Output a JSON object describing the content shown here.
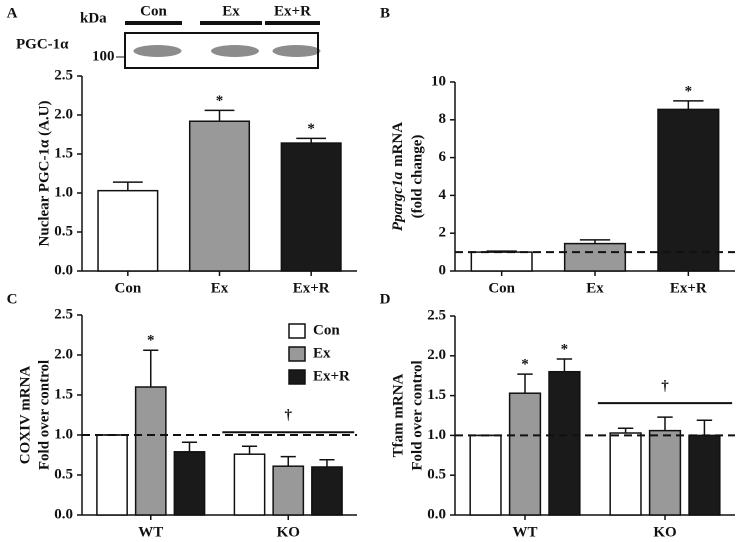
{
  "chart_data": [
    {
      "type": "bar",
      "panel": "A",
      "blot": {
        "kda": "kDa",
        "lanes": [
          "Con",
          "Ex",
          "Ex+R"
        ],
        "protein": "PGC-1α",
        "marker": "100"
      },
      "ylabel": [
        "Nuclear PGC-1α (A.U)"
      ],
      "categories": [
        "Con",
        "Ex",
        "Ex+R"
      ],
      "values": [
        1.03,
        1.92,
        1.64
      ],
      "errors": [
        0.11,
        0.14,
        0.06
      ],
      "colors": [
        "#ffffff",
        "#999999",
        "#1a1a1a"
      ],
      "ylim": [
        0,
        2.5
      ],
      "yticks": [
        {
          "value": 0,
          "label": "0.0"
        },
        {
          "value": 0.5,
          "label": "0.5"
        },
        {
          "value": 1,
          "label": "1.0"
        },
        {
          "value": 1.5,
          "label": "1.5"
        },
        {
          "value": 2,
          "label": "2.0"
        },
        {
          "value": 2.5,
          "label": "2.5"
        }
      ],
      "annotations": [
        {
          "text": "*",
          "category": 1
        },
        {
          "text": "*",
          "category": 2
        }
      ]
    },
    {
      "type": "bar",
      "panel": "B",
      "ylabel": [
        [
          "Ppargc1a",
          "mRNA"
        ],
        "(fold change)"
      ],
      "categories": [
        "Con",
        "Ex",
        "Ex+R"
      ],
      "values": [
        1.0,
        1.45,
        8.55
      ],
      "errors": [
        0.05,
        0.2,
        0.45
      ],
      "colors": [
        "#ffffff",
        "#999999",
        "#1a1a1a"
      ],
      "ylim": [
        0,
        10
      ],
      "yticks": [
        0,
        2,
        4,
        6,
        8,
        10
      ],
      "reference_line": 1,
      "annotations": [
        {
          "text": "*",
          "category": 2
        }
      ]
    },
    {
      "type": "bar",
      "panel": "C",
      "ylabel": [
        "COXIV mRNA",
        "Fold over control"
      ],
      "categories": [
        "WT",
        "KO"
      ],
      "series": [
        {
          "name": "Con",
          "color": "#ffffff",
          "values": [
            1.0,
            0.76
          ],
          "errors": [
            0.0,
            0.1
          ]
        },
        {
          "name": "Ex",
          "color": "#999999",
          "values": [
            1.6,
            0.61
          ],
          "errors": [
            0.46,
            0.12
          ]
        },
        {
          "name": "Ex+R",
          "color": "#1a1a1a",
          "values": [
            0.79,
            0.6
          ],
          "errors": [
            0.12,
            0.09
          ]
        }
      ],
      "ylim": [
        0,
        2.5
      ],
      "yticks": [
        {
          "value": 0,
          "label": "0.0"
        },
        {
          "value": 0.5,
          "label": "0.5"
        },
        {
          "value": 1,
          "label": "1.0"
        },
        {
          "value": 1.5,
          "label": "1.5"
        },
        {
          "value": 2,
          "label": "2.0"
        },
        {
          "value": 2.5,
          "label": "2.5"
        }
      ],
      "reference_line": 1,
      "legend": "upper right",
      "annotations": [
        {
          "text": "*",
          "category": 0,
          "series": 1
        },
        {
          "text": "†",
          "category": 1,
          "bracket": true
        }
      ]
    },
    {
      "type": "bar",
      "panel": "D",
      "ylabel": [
        "Tfam mRNA",
        "Fold over control"
      ],
      "categories": [
        "WT",
        "KO"
      ],
      "series": [
        {
          "name": "Con",
          "color": "#ffffff",
          "values": [
            1.0,
            1.03
          ],
          "errors": [
            0.0,
            0.06
          ]
        },
        {
          "name": "Ex",
          "color": "#999999",
          "values": [
            1.53,
            1.06
          ],
          "errors": [
            0.24,
            0.17
          ]
        },
        {
          "name": "Ex+R",
          "color": "#1a1a1a",
          "values": [
            1.8,
            1.0
          ],
          "errors": [
            0.16,
            0.19
          ]
        }
      ],
      "ylim": [
        0,
        2.5
      ],
      "yticks": [
        {
          "value": 0,
          "label": "0.0"
        },
        {
          "value": 0.5,
          "label": "0.5"
        },
        {
          "value": 1,
          "label": "1.0"
        },
        {
          "value": 1.5,
          "label": "1.5"
        },
        {
          "value": 2,
          "label": "2.0"
        },
        {
          "value": 2.5,
          "label": "2.5"
        }
      ],
      "reference_line": 1,
      "annotations": [
        {
          "text": "*",
          "category": 0,
          "series": 1
        },
        {
          "text": "*",
          "category": 0,
          "series": 2
        },
        {
          "text": "†",
          "category": 1,
          "bracket": true
        }
      ]
    }
  ]
}
